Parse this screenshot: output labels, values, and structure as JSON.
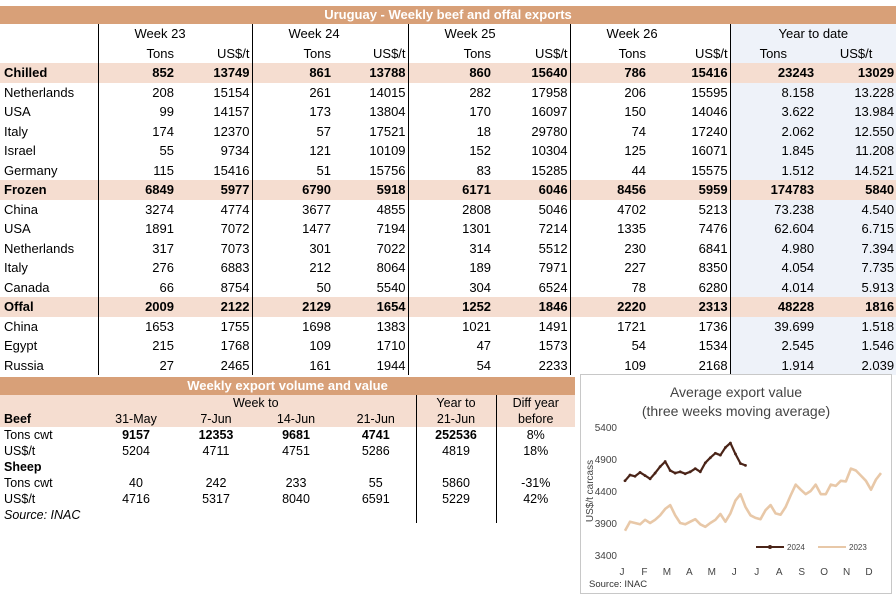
{
  "exports_table": {
    "title": "Uruguay - Weekly beef and offal exports",
    "weeks": [
      "Week 23",
      "Week 24",
      "Week 25",
      "Week 26"
    ],
    "ytd_label": "Year to date",
    "unit_tons": "Tons",
    "unit_usd": "US$/t",
    "groups": [
      {
        "name": "Chilled",
        "values": [
          "852",
          "13749",
          "861",
          "13788",
          "860",
          "15640",
          "786",
          "15416",
          "23243",
          "13029"
        ],
        "rows": [
          {
            "name": "Netherlands",
            "values": [
              "208",
              "15154",
              "261",
              "14015",
              "282",
              "17958",
              "206",
              "15595",
              "8.158",
              "13.228"
            ]
          },
          {
            "name": "USA",
            "values": [
              "99",
              "14157",
              "173",
              "13804",
              "170",
              "16097",
              "150",
              "14046",
              "3.622",
              "13.984"
            ]
          },
          {
            "name": "Italy",
            "values": [
              "174",
              "12370",
              "57",
              "17521",
              "18",
              "29780",
              "74",
              "17240",
              "2.062",
              "12.550"
            ]
          },
          {
            "name": "Israel",
            "values": [
              "55",
              "9734",
              "121",
              "10109",
              "152",
              "10304",
              "125",
              "16071",
              "1.845",
              "11.208"
            ]
          },
          {
            "name": "Germany",
            "values": [
              "115",
              "15416",
              "51",
              "15756",
              "83",
              "15285",
              "44",
              "15575",
              "1.512",
              "14.521"
            ]
          }
        ]
      },
      {
        "name": "Frozen",
        "values": [
          "6849",
          "5977",
          "6790",
          "5918",
          "6171",
          "6046",
          "8456",
          "5959",
          "174783",
          "5840"
        ],
        "rows": [
          {
            "name": "China",
            "values": [
              "3274",
              "4774",
              "3677",
              "4855",
              "2808",
              "5046",
              "4702",
              "5213",
              "73.238",
              "4.540"
            ]
          },
          {
            "name": "USA",
            "values": [
              "1891",
              "7072",
              "1477",
              "7194",
              "1301",
              "7214",
              "1335",
              "7476",
              "62.604",
              "6.715"
            ]
          },
          {
            "name": "Netherlands",
            "values": [
              "317",
              "7073",
              "301",
              "7022",
              "314",
              "5512",
              "230",
              "6841",
              "4.980",
              "7.394"
            ]
          },
          {
            "name": "Italy",
            "values": [
              "276",
              "6883",
              "212",
              "8064",
              "189",
              "7971",
              "227",
              "8350",
              "4.054",
              "7.735"
            ]
          },
          {
            "name": "Canada",
            "values": [
              "66",
              "8754",
              "50",
              "5540",
              "304",
              "6524",
              "78",
              "6280",
              "4.014",
              "5.913"
            ]
          }
        ]
      },
      {
        "name": "Offal",
        "values": [
          "2009",
          "2122",
          "2129",
          "1654",
          "1252",
          "1846",
          "2220",
          "2313",
          "48228",
          "1816"
        ],
        "rows": [
          {
            "name": "China",
            "values": [
              "1653",
              "1755",
              "1698",
              "1383",
              "1021",
              "1491",
              "1721",
              "1736",
              "39.699",
              "1.518"
            ]
          },
          {
            "name": "Egypt",
            "values": [
              "215",
              "1768",
              "109",
              "1710",
              "47",
              "1573",
              "54",
              "1534",
              "2.545",
              "1.546"
            ]
          },
          {
            "name": "Russia",
            "values": [
              "27",
              "2465",
              "161",
              "1944",
              "54",
              "2233",
              "109",
              "2168",
              "1.914",
              "2.039"
            ]
          }
        ]
      }
    ]
  },
  "weekly_table": {
    "title": "Weekly export volume and value",
    "week_to_label": "Week to",
    "year_to_label": "Year to",
    "diff_label_1": "Diff year",
    "diff_label_2": "before",
    "dates": [
      "31-May",
      "7-Jun",
      "14-Jun",
      "21-Jun"
    ],
    "ytd_date": "21-Jun",
    "beef_label": "Beef",
    "sheep_label": "Sheep",
    "beef_rows": [
      {
        "name": "Tons cwt",
        "values": [
          "9157",
          "12353",
          "9681",
          "4741"
        ],
        "ytd": "252536",
        "diff": "8%"
      },
      {
        "name": "US$/t",
        "values": [
          "5204",
          "4711",
          "4751",
          "5286"
        ],
        "ytd": "4819",
        "diff": "18%"
      }
    ],
    "sheep_rows": [
      {
        "name": "Tons cwt",
        "values": [
          "40",
          "242",
          "233",
          "55"
        ],
        "ytd": "5860",
        "diff": "-31%"
      },
      {
        "name": "US$/t",
        "values": [
          "4716",
          "5317",
          "8040",
          "6591"
        ],
        "ytd": "5229",
        "diff": "42%"
      }
    ],
    "source": "Source: INAC"
  },
  "chart_data": {
    "type": "line",
    "title": "Average export value",
    "subtitle": "(three weeks moving average)",
    "ylabel": "US$/t carcass",
    "ylim": [
      3400,
      5400
    ],
    "yticks": [
      3400,
      3900,
      4400,
      4900,
      5400
    ],
    "month_labels": [
      "J",
      "F",
      "M",
      "A",
      "M",
      "J",
      "J",
      "A",
      "S",
      "O",
      "N",
      "D"
    ],
    "source": "Source: INAC",
    "series": [
      {
        "name": "2024",
        "color": "#4a2418",
        "x": [
          1,
          2,
          3,
          4,
          5,
          6,
          7,
          8,
          9,
          10,
          11,
          12,
          13,
          14,
          15,
          16,
          17,
          18,
          19,
          20,
          21,
          22,
          23,
          24,
          25
        ],
        "values": [
          4560,
          4650,
          4630,
          4690,
          4640,
          4590,
          4680,
          4780,
          4860,
          4720,
          4680,
          4700,
          4670,
          4700,
          4750,
          4700,
          4840,
          4920,
          4990,
          4960,
          5080,
          5150,
          4980,
          4830,
          4800
        ]
      },
      {
        "name": "2023",
        "color": "#e8c8a8",
        "x": [
          1,
          2,
          3,
          4,
          5,
          6,
          7,
          8,
          9,
          10,
          11,
          12,
          13,
          14,
          15,
          16,
          17,
          18,
          19,
          20,
          21,
          22,
          23,
          24,
          25,
          26,
          27,
          28,
          29,
          30,
          31,
          32,
          33,
          34,
          35,
          36,
          37,
          38,
          39,
          40,
          41,
          42,
          43,
          44,
          45,
          46,
          47,
          48,
          49,
          50,
          51,
          52
        ],
        "values": [
          3780,
          3920,
          3900,
          3880,
          3950,
          3900,
          3950,
          4020,
          4120,
          4180,
          4020,
          3900,
          3880,
          3920,
          3960,
          3880,
          3840,
          3900,
          3950,
          4040,
          3920,
          4050,
          4250,
          4350,
          4150,
          4020,
          3980,
          3960,
          4100,
          4180,
          4050,
          4030,
          4150,
          4330,
          4500,
          4420,
          4350,
          4400,
          4500,
          4350,
          4350,
          4500,
          4480,
          4560,
          4550,
          4750,
          4720,
          4640,
          4560,
          4420,
          4580,
          4680
        ]
      }
    ]
  }
}
